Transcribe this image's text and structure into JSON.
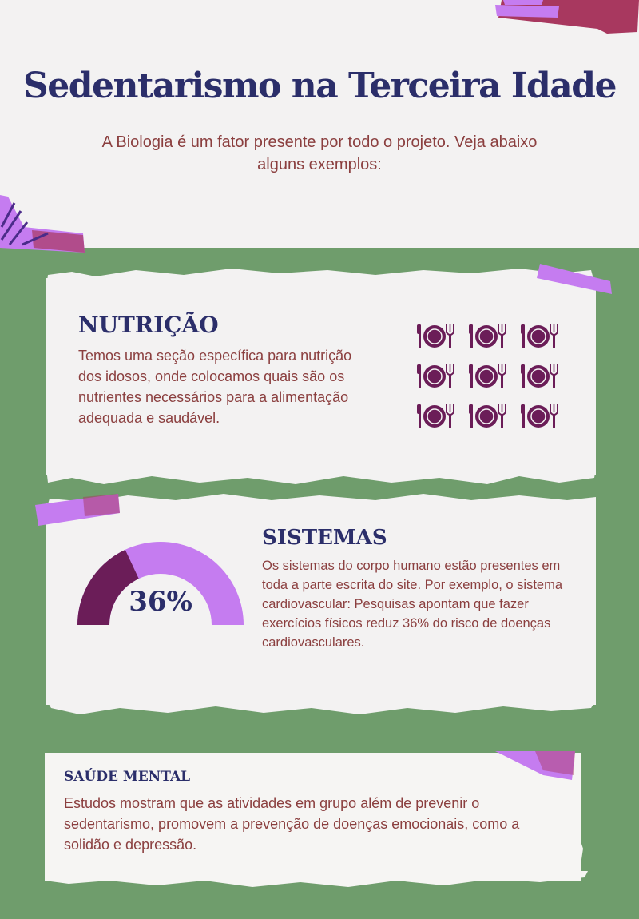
{
  "header": {
    "title": "Sedentarismo na Terceira Idade",
    "subtitle": "A Biologia é um fator presente por todo o projeto. Veja abaixo alguns exemplos:"
  },
  "nutricao": {
    "heading": "NUTRIÇÃO",
    "text": "Temos uma seção específica para nutrição dos idosos, onde colocamos quais são os nutrientes necessários para a alimentação adequada e saudável.",
    "icon": "plate-fork-knife-icon",
    "icon_count": 9
  },
  "sistemas": {
    "heading": "SISTEMAS",
    "text": "Os sistemas do corpo humano estão presentes em toda a parte escrita do site. Por exemplo, o sistema cardiovascular: Pesquisas apontam que fazer exercícios físicos reduz 36% do risco de doenças cardiovasculares.",
    "gauge_label": "36%",
    "gauge_fraction": 0.36
  },
  "saude": {
    "heading": "SAÚDE MENTAL",
    "text": "Estudos mostram que as atividades em grupo além de prevenir o sedentarismo, promovem a prevenção de doenças emocionais, como a solidão e depressão."
  },
  "colors": {
    "background_green": "#6f9d6c",
    "paper": "#f3f2f2",
    "navy": "#2b2e6a",
    "text_brown": "#8b3f3f",
    "plum": "#6b1d58",
    "lilac": "#c57cf0",
    "tape_pink": "#a8385f"
  }
}
